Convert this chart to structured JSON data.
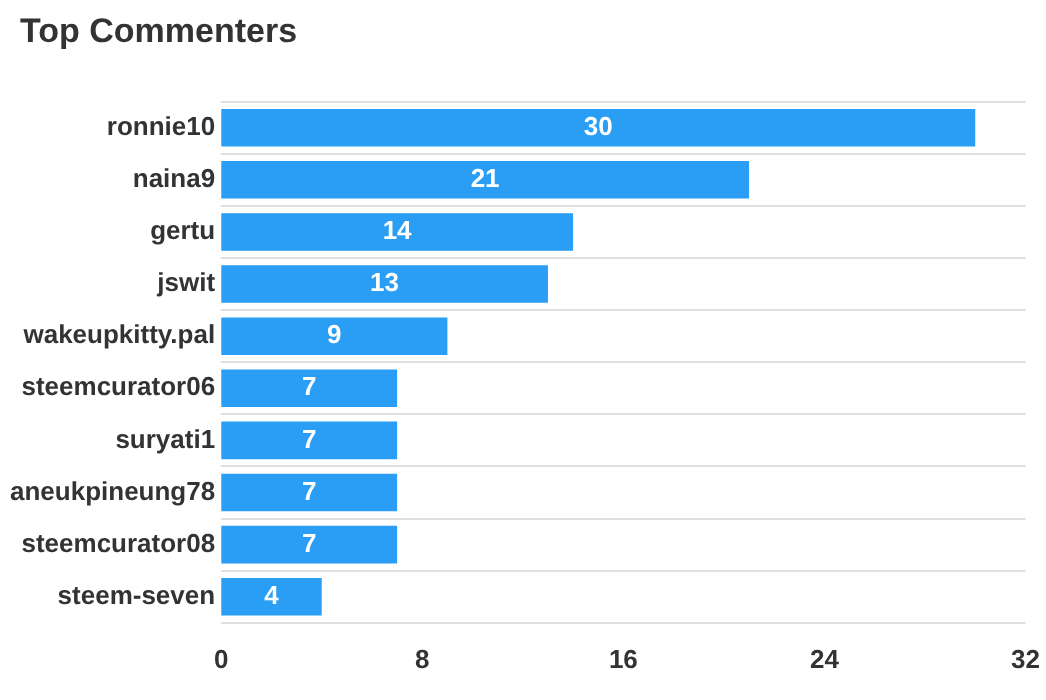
{
  "chart_data": {
    "type": "bar",
    "title": "Top Commenters",
    "orientation": "horizontal",
    "categories": [
      "ronnie10",
      "naina9",
      "gertu",
      "jswit",
      "wakeupkitty.pal",
      "steemcurator06",
      "suryati1",
      "aneukpineung78",
      "steemcurator08",
      "steem-seven"
    ],
    "values": [
      30,
      21,
      14,
      13,
      9,
      7,
      7,
      7,
      7,
      4
    ],
    "color": "#2a9df4",
    "xlim": [
      0,
      32
    ],
    "xticks": [
      0,
      8,
      16,
      24,
      32
    ],
    "grid": "y",
    "data_labels": true
  }
}
